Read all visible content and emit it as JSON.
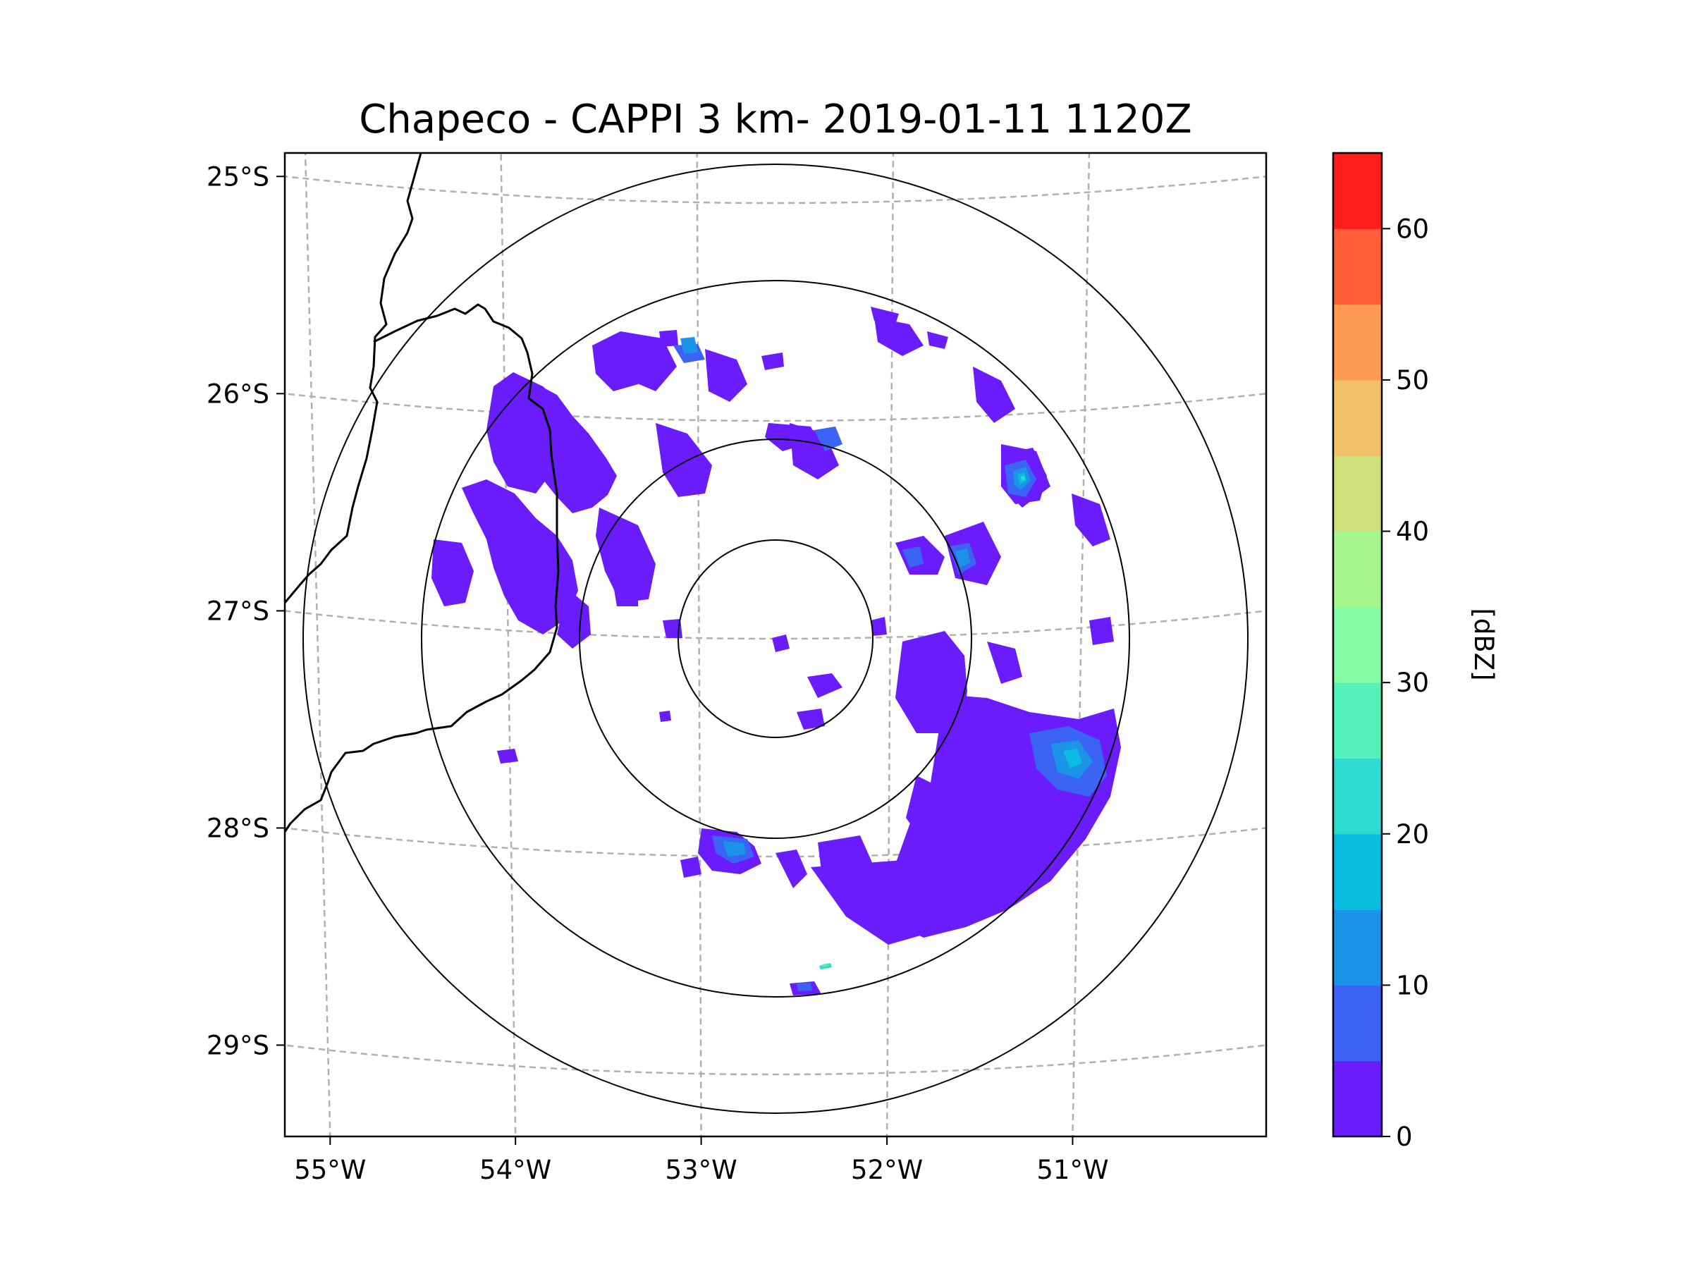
{
  "chart_data": {
    "type": "heatmap",
    "title": "Chapeco - CAPPI 3 km- 2019-01-11 1120Z",
    "subtitle": "",
    "xlabel": "",
    "ylabel": "",
    "lon_range": [
      -55.17,
      -50.08
    ],
    "lat_range": [
      -29.3,
      -24.79
    ],
    "x_ticks": [
      {
        "lon": -55,
        "label": "55°W"
      },
      {
        "lon": -54,
        "label": "54°W"
      },
      {
        "lon": -53,
        "label": "53°W"
      },
      {
        "lon": -52,
        "label": "52°W"
      },
      {
        "lon": -51,
        "label": "51°W"
      }
    ],
    "y_ticks": [
      {
        "lat": -25,
        "label": "25°S"
      },
      {
        "lat": -26,
        "label": "26°S"
      },
      {
        "lat": -27,
        "label": "27°S"
      },
      {
        "lat": -28,
        "label": "28°S"
      },
      {
        "lat": -29,
        "label": "29°S"
      }
    ],
    "grid": true,
    "radar_center": {
      "lon": -52.6,
      "lat": -27.0
    },
    "range_rings_km": [
      50,
      100,
      150,
      200
    ],
    "colorbar": {
      "label": "[dBZ]",
      "min": 0,
      "max": 65,
      "bounds": [
        0,
        5,
        10,
        15,
        20,
        25,
        30,
        35,
        40,
        45,
        50,
        55,
        60,
        65
      ],
      "colors": [
        "#6a1cfd",
        "#3b63f4",
        "#1b93e6",
        "#0abde0",
        "#2ddbd0",
        "#54f1bb",
        "#82fba2",
        "#a6f68e",
        "#cfe07a",
        "#f3c06a",
        "#ff9a52",
        "#ff5f38",
        "#ff1e1b"
      ],
      "tick_values": [
        0,
        10,
        20,
        30,
        40,
        50,
        60
      ],
      "tick_labels": [
        "0",
        "10",
        "20",
        "30",
        "40",
        "50",
        "60"
      ]
    },
    "echo_regions": [
      {
        "name": "north-west sector",
        "lon": -53.6,
        "lat": -26.1,
        "dbz": 3
      },
      {
        "name": "west sector",
        "lon": -54.1,
        "lat": -26.7,
        "dbz": 3
      },
      {
        "name": "north sector",
        "lon": -53.0,
        "lat": -25.7,
        "dbz": 3
      },
      {
        "name": "north-east cell",
        "lon": -51.2,
        "lat": -26.25,
        "dbz": 15
      },
      {
        "name": "east cell",
        "lon": -51.7,
        "lat": -26.65,
        "dbz": 12
      },
      {
        "name": "south-east band",
        "lon": -51.4,
        "lat": -27.6,
        "dbz": 5
      },
      {
        "name": "south-east core",
        "lon": -50.95,
        "lat": -27.55,
        "dbz": 14
      },
      {
        "name": "south sector",
        "lon": -51.8,
        "lat": -28.2,
        "dbz": 3
      },
      {
        "name": "south cell",
        "lon": -52.8,
        "lat": -27.95,
        "dbz": 12
      }
    ]
  }
}
